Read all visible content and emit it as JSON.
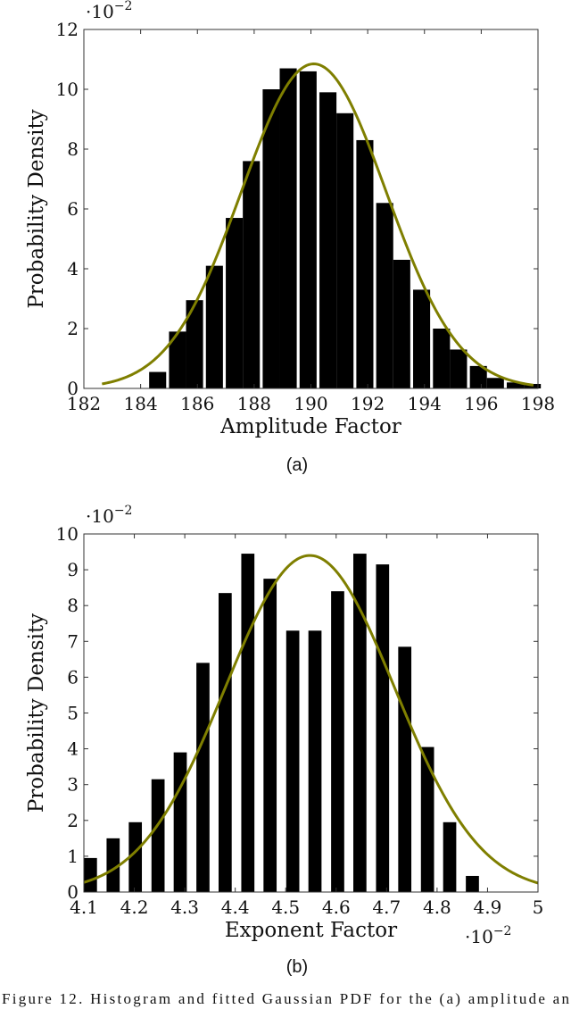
{
  "chart_data": [
    {
      "type": "bar",
      "subcaption": "(a)",
      "xlabel": "Amplitude Factor",
      "ylabel": "Probability Density",
      "y_multiplier": {
        "base": "·10",
        "exp": "−2"
      },
      "xlim": [
        182,
        198
      ],
      "ylim": [
        0,
        12
      ],
      "x_ticks": [
        182,
        184,
        186,
        188,
        190,
        192,
        194,
        196,
        198
      ],
      "y_ticks": [
        0,
        2,
        4,
        6,
        8,
        10,
        12
      ],
      "bar_width": 0.6,
      "bars": {
        "x": [
          184.6,
          185.3,
          185.9,
          186.6,
          187.3,
          187.9,
          188.6,
          189.2,
          189.9,
          190.6,
          191.2,
          191.9,
          192.6,
          193.2,
          193.9,
          194.6,
          195.2,
          195.9,
          196.5,
          197.2,
          197.8
        ],
        "values": [
          0.55,
          1.9,
          2.95,
          4.1,
          5.7,
          7.6,
          10.0,
          10.7,
          10.6,
          9.9,
          9.2,
          8.3,
          6.2,
          4.3,
          3.3,
          2.0,
          1.3,
          0.75,
          0.35,
          0.2,
          0.15
        ]
      },
      "fit": {
        "name": "Gaussian PDF",
        "mean": 190.1,
        "std": 2.55,
        "peak": 10.85,
        "color": "#7f7f00"
      }
    },
    {
      "type": "bar",
      "subcaption": "(b)",
      "xlabel": "Exponent Factor",
      "ylabel": "Probability Density",
      "y_multiplier": {
        "base": "·10",
        "exp": "−2"
      },
      "x_multiplier": {
        "base": "·10",
        "exp": "−2"
      },
      "xlim": [
        4.1,
        5.0
      ],
      "ylim": [
        0,
        10
      ],
      "x_ticks": [
        4.1,
        4.2,
        4.3,
        4.4,
        4.5,
        4.6,
        4.7,
        4.8,
        4.9,
        5
      ],
      "x_tick_labels": [
        "4.1",
        "4.2",
        "4.3",
        "4.4",
        "4.5",
        "4.6",
        "4.7",
        "4.8",
        "4.9",
        "5"
      ],
      "y_ticks": [
        0,
        1,
        2,
        3,
        4,
        5,
        6,
        7,
        8,
        9,
        10
      ],
      "bar_width": 0.026,
      "bars": {
        "x": [
          4.113,
          4.158,
          4.202,
          4.247,
          4.291,
          4.336,
          4.38,
          4.425,
          4.469,
          4.514,
          4.558,
          4.603,
          4.647,
          4.692,
          4.736,
          4.781,
          4.825,
          4.87
        ],
        "values": [
          0.95,
          1.5,
          1.95,
          3.15,
          3.9,
          6.4,
          8.35,
          9.45,
          8.75,
          7.3,
          7.3,
          8.4,
          9.45,
          9.15,
          6.85,
          4.05,
          1.95,
          0.45
        ]
      },
      "fit": {
        "name": "Gaussian PDF",
        "mean": 4.548,
        "std": 0.168,
        "peak": 9.4,
        "color": "#7f7f00"
      }
    }
  ],
  "caption": "Figure 12.  Histogram and fitted Gaussian PDF for the (a) amplitude an"
}
